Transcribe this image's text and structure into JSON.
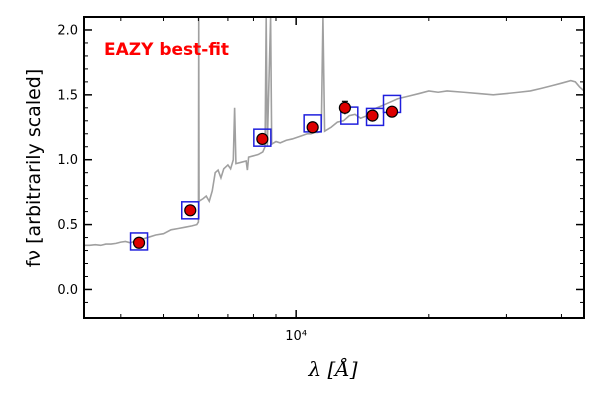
{
  "chart_data": {
    "type": "line",
    "annotation": "EAZY best-fit",
    "xlabel": "λ [Å]",
    "ylabel": "fν [arbitrarily scaled]",
    "xscale": "log",
    "xlim": [
      3300,
      45000
    ],
    "ylim": [
      -0.22,
      2.1
    ],
    "yticks": [
      0.0,
      0.5,
      1.0,
      1.5,
      2.0
    ],
    "ytick_labels": [
      "0.0",
      "0.5",
      "1.0",
      "1.5",
      "2.0"
    ],
    "xticks_major": [
      10000
    ],
    "xtick_major_labels": [
      "10⁴"
    ],
    "template_color": "#a0a0a0",
    "photometry_color": "#dd0000",
    "model_box_color": "#1f1fdd",
    "template": [
      [
        3300,
        0.34
      ],
      [
        3400,
        0.34
      ],
      [
        3500,
        0.345
      ],
      [
        3600,
        0.34
      ],
      [
        3700,
        0.35
      ],
      [
        3800,
        0.35
      ],
      [
        3900,
        0.355
      ],
      [
        4000,
        0.365
      ],
      [
        4100,
        0.37
      ],
      [
        4200,
        0.36
      ],
      [
        4300,
        0.37
      ],
      [
        4400,
        0.38
      ],
      [
        4600,
        0.4
      ],
      [
        4800,
        0.42
      ],
      [
        5000,
        0.43
      ],
      [
        5200,
        0.46
      ],
      [
        5400,
        0.47
      ],
      [
        5600,
        0.48
      ],
      [
        5800,
        0.49
      ],
      [
        5950,
        0.5
      ],
      [
        6000,
        0.52
      ],
      [
        6010,
        2.1
      ],
      [
        6020,
        0.68
      ],
      [
        6150,
        0.7
      ],
      [
        6250,
        0.72
      ],
      [
        6350,
        0.68
      ],
      [
        6450,
        0.76
      ],
      [
        6550,
        0.9
      ],
      [
        6650,
        0.92
      ],
      [
        6750,
        0.86
      ],
      [
        6850,
        0.93
      ],
      [
        7000,
        0.96
      ],
      [
        7100,
        0.93
      ],
      [
        7200,
        1.0
      ],
      [
        7250,
        1.4
      ],
      [
        7300,
        0.97
      ],
      [
        7500,
        0.98
      ],
      [
        7700,
        0.99
      ],
      [
        7750,
        0.92
      ],
      [
        7800,
        1.02
      ],
      [
        8000,
        1.03
      ],
      [
        8200,
        1.04
      ],
      [
        8400,
        1.06
      ],
      [
        8500,
        1.1
      ],
      [
        8550,
        2.1
      ],
      [
        8600,
        1.1
      ],
      [
        8750,
        2.1
      ],
      [
        8800,
        1.12
      ],
      [
        9000,
        1.14
      ],
      [
        9200,
        1.13
      ],
      [
        9500,
        1.15
      ],
      [
        9800,
        1.16
      ],
      [
        10200,
        1.18
      ],
      [
        10600,
        1.2
      ],
      [
        10800,
        1.2
      ],
      [
        11000,
        1.21
      ],
      [
        11200,
        1.21
      ],
      [
        11400,
        1.22
      ],
      [
        11500,
        2.1
      ],
      [
        11600,
        1.22
      ],
      [
        12000,
        1.25
      ],
      [
        12400,
        1.29
      ],
      [
        12800,
        1.3
      ],
      [
        13200,
        1.34
      ],
      [
        13600,
        1.35
      ],
      [
        14000,
        1.32
      ],
      [
        14500,
        1.34
      ],
      [
        15000,
        1.39
      ],
      [
        15500,
        1.41
      ],
      [
        16000,
        1.43
      ],
      [
        16500,
        1.45
      ],
      [
        17000,
        1.47
      ],
      [
        18000,
        1.49
      ],
      [
        19000,
        1.51
      ],
      [
        20000,
        1.53
      ],
      [
        21000,
        1.52
      ],
      [
        22000,
        1.53
      ],
      [
        24000,
        1.52
      ],
      [
        26000,
        1.51
      ],
      [
        28000,
        1.5
      ],
      [
        30000,
        1.51
      ],
      [
        32000,
        1.52
      ],
      [
        34000,
        1.53
      ],
      [
        36000,
        1.55
      ],
      [
        38000,
        1.57
      ],
      [
        40000,
        1.59
      ],
      [
        42000,
        1.61
      ],
      [
        43000,
        1.6
      ],
      [
        44000,
        1.56
      ],
      [
        45000,
        1.53
      ]
    ],
    "photometry": [
      {
        "x": 4400,
        "y": 0.36,
        "err": 0.0
      },
      {
        "x": 5750,
        "y": 0.61,
        "err": 0.0
      },
      {
        "x": 8380,
        "y": 1.16,
        "err": 0.0
      },
      {
        "x": 10900,
        "y": 1.25,
        "err": 0.0
      },
      {
        "x": 12900,
        "y": 1.4,
        "err": 0.05
      },
      {
        "x": 14900,
        "y": 1.34,
        "err": 0.0
      },
      {
        "x": 16500,
        "y": 1.37,
        "err": 0.0
      }
    ],
    "model_fluxes": [
      {
        "x": 4400,
        "y": 0.37
      },
      {
        "x": 5750,
        "y": 0.61
      },
      {
        "x": 8380,
        "y": 1.17
      },
      {
        "x": 10900,
        "y": 1.28
      },
      {
        "x": 13200,
        "y": 1.34
      },
      {
        "x": 15100,
        "y": 1.33
      },
      {
        "x": 16500,
        "y": 1.43
      }
    ]
  }
}
